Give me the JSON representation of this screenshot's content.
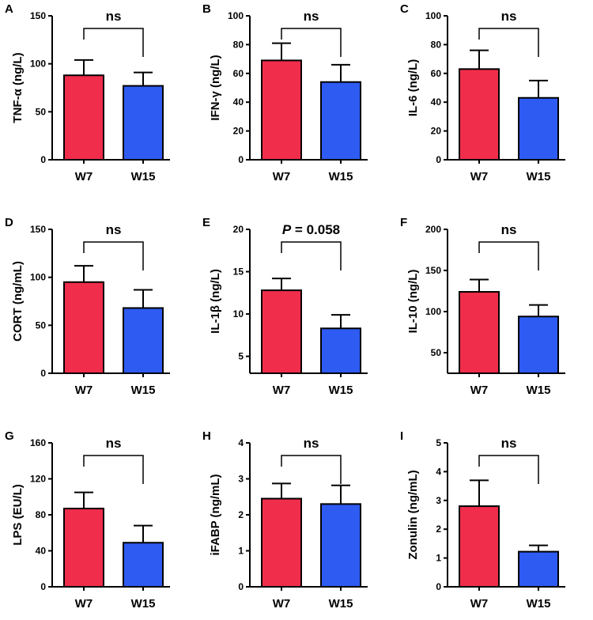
{
  "colors": {
    "W7": "#f02d4b",
    "W15": "#2e5bf2"
  },
  "chart_data": [
    {
      "letter": "A",
      "type": "bar",
      "ylabel": "TNF-α (ng/L)",
      "categories": [
        "W7",
        "W15"
      ],
      "values": [
        88,
        77
      ],
      "errors": [
        16,
        14
      ],
      "ylim": [
        0,
        150
      ],
      "yticks": [
        "0",
        "50",
        "100",
        "150"
      ],
      "significance": "ns"
    },
    {
      "letter": "B",
      "type": "bar",
      "ylabel": "IFN-γ (ng/L)",
      "categories": [
        "W7",
        "W15"
      ],
      "values": [
        69,
        54
      ],
      "errors": [
        12,
        12
      ],
      "ylim": [
        0,
        100
      ],
      "yticks": [
        "0",
        "20",
        "40",
        "60",
        "80",
        "100"
      ],
      "significance": "ns"
    },
    {
      "letter": "C",
      "type": "bar",
      "ylabel": "IL-6 (ng/L)",
      "categories": [
        "W7",
        "W15"
      ],
      "values": [
        63,
        43
      ],
      "errors": [
        13,
        12
      ],
      "ylim": [
        0,
        100
      ],
      "yticks": [
        "0",
        "20",
        "40",
        "60",
        "80",
        "100"
      ],
      "significance": "ns"
    },
    {
      "letter": "D",
      "type": "bar",
      "ylabel": "CORT (ng/mL)",
      "categories": [
        "W7",
        "W15"
      ],
      "values": [
        95,
        68
      ],
      "errors": [
        17,
        19
      ],
      "ylim": [
        0,
        150
      ],
      "yticks": [
        "0",
        "50",
        "100",
        "150"
      ],
      "significance": "ns"
    },
    {
      "letter": "E",
      "type": "bar",
      "ylabel": "IL-1β (ng/L)",
      "categories": [
        "W7",
        "W15"
      ],
      "values": [
        12.8,
        8.3
      ],
      "errors": [
        1.4,
        1.6
      ],
      "ylim": [
        3,
        20
      ],
      "yticks": [
        "5",
        "10",
        "15",
        "20"
      ],
      "significance": "P = 0.058",
      "significance_italic": "P",
      "significance_rest": " = 0.058"
    },
    {
      "letter": "F",
      "type": "bar",
      "ylabel": "IL-10 (ng/L)",
      "categories": [
        "W7",
        "W15"
      ],
      "values": [
        124,
        94
      ],
      "errors": [
        15,
        14
      ],
      "ylim": [
        25,
        200
      ],
      "yticks": [
        "50",
        "100",
        "150",
        "200"
      ],
      "significance": "ns"
    },
    {
      "letter": "G",
      "type": "bar",
      "ylabel": "LPS (EU/L)",
      "categories": [
        "W7",
        "W15"
      ],
      "values": [
        87,
        49
      ],
      "errors": [
        18,
        19
      ],
      "ylim": [
        0,
        160
      ],
      "yticks": [
        "0",
        "40",
        "80",
        "120",
        "160"
      ],
      "significance": "ns"
    },
    {
      "letter": "H",
      "type": "bar",
      "ylabel": "iFABP (ng/mL)",
      "categories": [
        "W7",
        "W15"
      ],
      "values": [
        2.45,
        2.3
      ],
      "errors": [
        0.42,
        0.52
      ],
      "ylim": [
        0,
        4
      ],
      "yticks": [
        "0",
        "1",
        "2",
        "3",
        "4"
      ],
      "significance": "ns"
    },
    {
      "letter": "I",
      "type": "bar",
      "ylabel": "Zonulin (ng/mL)",
      "categories": [
        "W7",
        "W15"
      ],
      "values": [
        2.8,
        1.22
      ],
      "errors": [
        0.9,
        0.22
      ],
      "ylim": [
        0,
        5
      ],
      "yticks": [
        "0",
        "1",
        "2",
        "3",
        "4",
        "5"
      ],
      "significance": "ns"
    }
  ]
}
